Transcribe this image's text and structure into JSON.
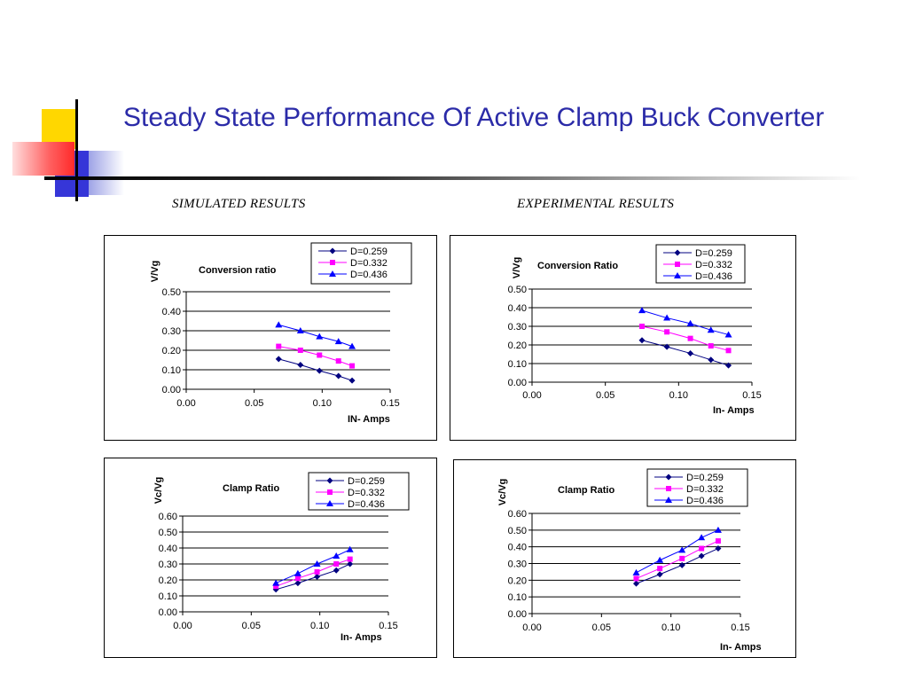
{
  "slide": {
    "title": "Steady State Performance Of Active Clamp Buck Converter",
    "simulated_label": "SIMULATED RESULTS",
    "experimental_label": "EXPERIMENTAL RESULTS"
  },
  "colors": {
    "title": "#2B2BA8",
    "series": [
      "#000080",
      "#FF00FF",
      "#0000FF"
    ]
  },
  "chart_data": [
    {
      "type": "line",
      "title": "Conversion ratio",
      "ylabel": "V/Vg",
      "xlabel": "IN- Amps",
      "xlim": [
        0,
        0.15
      ],
      "ylim": [
        0,
        0.5
      ],
      "xticks": [
        "0.00",
        "0.05",
        "0.10",
        "0.15"
      ],
      "yticks": [
        "0.00",
        "0.10",
        "0.20",
        "0.30",
        "0.40",
        "0.50"
      ],
      "legend_position": "top-right",
      "grid": true,
      "series": [
        {
          "name": "D=0.259",
          "marker": "diamond",
          "x": [
            0.068,
            0.084,
            0.098,
            0.112,
            0.122
          ],
          "y": [
            0.155,
            0.125,
            0.095,
            0.068,
            0.045
          ]
        },
        {
          "name": "D=0.332",
          "marker": "square",
          "x": [
            0.068,
            0.084,
            0.098,
            0.112,
            0.122
          ],
          "y": [
            0.22,
            0.2,
            0.175,
            0.145,
            0.12
          ]
        },
        {
          "name": "D=0.436",
          "marker": "triangle",
          "x": [
            0.068,
            0.084,
            0.098,
            0.112,
            0.122
          ],
          "y": [
            0.33,
            0.3,
            0.27,
            0.245,
            0.22
          ]
        }
      ]
    },
    {
      "type": "line",
      "title": "Conversion Ratio",
      "ylabel": "V/Vg",
      "xlabel": "In- Amps",
      "xlim": [
        0,
        0.15
      ],
      "ylim": [
        0,
        0.5
      ],
      "xticks": [
        "0.00",
        "0.05",
        "0.10",
        "0.15"
      ],
      "yticks": [
        "0.00",
        "0.10",
        "0.20",
        "0.30",
        "0.40",
        "0.50"
      ],
      "legend_position": "top-right",
      "grid": true,
      "series": [
        {
          "name": "D=0.259",
          "marker": "diamond",
          "x": [
            0.075,
            0.092,
            0.108,
            0.122,
            0.134
          ],
          "y": [
            0.225,
            0.19,
            0.155,
            0.12,
            0.09
          ]
        },
        {
          "name": "D=0.332",
          "marker": "square",
          "x": [
            0.075,
            0.092,
            0.108,
            0.122,
            0.134
          ],
          "y": [
            0.3,
            0.27,
            0.235,
            0.195,
            0.17
          ]
        },
        {
          "name": "D=0.436",
          "marker": "triangle",
          "x": [
            0.075,
            0.092,
            0.108,
            0.122,
            0.134
          ],
          "y": [
            0.385,
            0.345,
            0.315,
            0.28,
            0.255
          ]
        }
      ]
    },
    {
      "type": "line",
      "title": "Clamp Ratio",
      "ylabel": "Vc/Vg",
      "xlabel": "In- Amps",
      "xlim": [
        0,
        0.15
      ],
      "ylim": [
        0,
        0.6
      ],
      "xticks": [
        "0.00",
        "0.05",
        "0.10",
        "0.15"
      ],
      "yticks": [
        "0.00",
        "0.10",
        "0.20",
        "0.30",
        "0.40",
        "0.50",
        "0.60"
      ],
      "legend_position": "top-right",
      "grid": true,
      "series": [
        {
          "name": "D=0.259",
          "marker": "diamond",
          "x": [
            0.068,
            0.084,
            0.098,
            0.112,
            0.122
          ],
          "y": [
            0.14,
            0.18,
            0.22,
            0.26,
            0.3
          ]
        },
        {
          "name": "D=0.332",
          "marker": "square",
          "x": [
            0.068,
            0.084,
            0.098,
            0.112,
            0.122
          ],
          "y": [
            0.16,
            0.21,
            0.25,
            0.3,
            0.33
          ]
        },
        {
          "name": "D=0.436",
          "marker": "triangle",
          "x": [
            0.068,
            0.084,
            0.098,
            0.112,
            0.122
          ],
          "y": [
            0.18,
            0.24,
            0.3,
            0.35,
            0.39
          ]
        }
      ]
    },
    {
      "type": "line",
      "title": "Clamp Ratio",
      "ylabel": "Vc/Vg",
      "xlabel": "In- Amps",
      "xlim": [
        0,
        0.15
      ],
      "ylim": [
        0,
        0.6
      ],
      "xticks": [
        "0.00",
        "0.05",
        "0.10",
        "0.15"
      ],
      "yticks": [
        "0.00",
        "0.10",
        "0.20",
        "0.30",
        "0.40",
        "0.50",
        "0.60"
      ],
      "legend_position": "top-right",
      "grid": true,
      "series": [
        {
          "name": "D=0.259",
          "marker": "diamond",
          "x": [
            0.075,
            0.092,
            0.108,
            0.122,
            0.134
          ],
          "y": [
            0.18,
            0.235,
            0.29,
            0.345,
            0.39
          ]
        },
        {
          "name": "D=0.332",
          "marker": "square",
          "x": [
            0.075,
            0.092,
            0.108,
            0.122,
            0.134
          ],
          "y": [
            0.21,
            0.27,
            0.33,
            0.39,
            0.435
          ]
        },
        {
          "name": "D=0.436",
          "marker": "triangle",
          "x": [
            0.075,
            0.092,
            0.108,
            0.122,
            0.134
          ],
          "y": [
            0.245,
            0.32,
            0.38,
            0.455,
            0.5
          ]
        }
      ]
    }
  ]
}
